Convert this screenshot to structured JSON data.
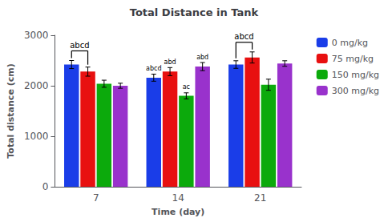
{
  "chart_data": {
    "type": "bar",
    "title": "Total Distance in Tank",
    "xlabel": "Time (day)",
    "ylabel": "Total distance (cm)",
    "categories": [
      "7",
      "14",
      "21"
    ],
    "series": [
      {
        "name": "0 mg/kg",
        "color": "#1a3de8",
        "values": [
          2420,
          2160,
          2420
        ],
        "errors": [
          80,
          70,
          75
        ]
      },
      {
        "name": "75 mg/kg",
        "color": "#e81010",
        "values": [
          2280,
          2280,
          2560
        ],
        "errors": [
          90,
          80,
          110
        ]
      },
      {
        "name": "150 mg/kg",
        "color": "#0caa0c",
        "values": [
          2040,
          1800,
          2020
        ],
        "errors": [
          70,
          60,
          110
        ]
      },
      {
        "name": "300 mg/kg",
        "color": "#9932cc",
        "values": [
          2000,
          2380,
          2440
        ],
        "errors": [
          50,
          80,
          55
        ]
      }
    ],
    "annotations": [
      {
        "text": "abcd",
        "category": "7",
        "series": [
          "0 mg/kg",
          "75 mg/kg"
        ]
      },
      {
        "text": "abcd",
        "category": "14",
        "series": [
          "0 mg/kg"
        ]
      },
      {
        "text": "abd",
        "category": "14",
        "series": [
          "75 mg/kg"
        ]
      },
      {
        "text": "ac",
        "category": "14",
        "series": [
          "150 mg/kg"
        ]
      },
      {
        "text": "abd",
        "category": "14",
        "series": [
          "300 mg/kg"
        ]
      },
      {
        "text": "abcd",
        "category": "21",
        "series": [
          "0 mg/kg",
          "75 mg/kg"
        ]
      }
    ],
    "ylim": [
      0,
      3000
    ],
    "yticks": [
      0,
      1000,
      2000,
      3000
    ],
    "grid": false,
    "legend": "right"
  }
}
